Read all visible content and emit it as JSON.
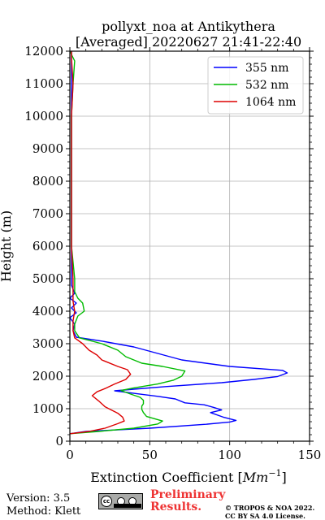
{
  "chart_data": {
    "type": "line",
    "title_line1": "pollyxt_noa at Antikythera",
    "title_line2": "[Averaged] 20220627 21:41-22:40",
    "xlabel": "Extinction Coefficient",
    "xlabel_unit": "Mm",
    "xlabel_unit_exp": "−1",
    "ylabel": "Height (m)",
    "xlim": [
      0,
      150
    ],
    "ylim": [
      0,
      12000
    ],
    "xticks": [
      0,
      50,
      100,
      150
    ],
    "yticks": [
      0,
      1000,
      2000,
      3000,
      4000,
      5000,
      6000,
      7000,
      8000,
      9000,
      10000,
      11000,
      12000
    ],
    "grid": true,
    "legend_position": "top-right",
    "series": [
      {
        "name": "355 nm",
        "color": "#0000ff",
        "points": [
          [
            0,
            230
          ],
          [
            10,
            300
          ],
          [
            50,
            400
          ],
          [
            85,
            520
          ],
          [
            100,
            590
          ],
          [
            104,
            640
          ],
          [
            96,
            740
          ],
          [
            88,
            880
          ],
          [
            95,
            960
          ],
          [
            90,
            1040
          ],
          [
            84,
            1120
          ],
          [
            72,
            1180
          ],
          [
            66,
            1300
          ],
          [
            55,
            1380
          ],
          [
            42,
            1460
          ],
          [
            28,
            1550
          ],
          [
            40,
            1600
          ],
          [
            60,
            1680
          ],
          [
            95,
            1800
          ],
          [
            115,
            1900
          ],
          [
            130,
            1990
          ],
          [
            136,
            2100
          ],
          [
            133,
            2180
          ],
          [
            100,
            2300
          ],
          [
            70,
            2500
          ],
          [
            55,
            2700
          ],
          [
            40,
            2900
          ],
          [
            20,
            3080
          ],
          [
            4,
            3200
          ],
          [
            2,
            3400
          ],
          [
            3,
            3600
          ],
          [
            0,
            3800
          ],
          [
            4,
            3950
          ],
          [
            1,
            4100
          ],
          [
            4,
            4250
          ],
          [
            0,
            4400
          ],
          [
            3,
            4550
          ],
          [
            1,
            4800
          ],
          [
            1,
            6000
          ],
          [
            1,
            8000
          ],
          [
            1,
            10000
          ],
          [
            1,
            12000
          ]
        ]
      },
      {
        "name": "532 nm",
        "color": "#00bb00",
        "points": [
          [
            0,
            230
          ],
          [
            18,
            300
          ],
          [
            40,
            400
          ],
          [
            55,
            530
          ],
          [
            58,
            620
          ],
          [
            48,
            760
          ],
          [
            46,
            880
          ],
          [
            45,
            980
          ],
          [
            45,
            1080
          ],
          [
            46,
            1150
          ],
          [
            46,
            1260
          ],
          [
            44,
            1350
          ],
          [
            38,
            1450
          ],
          [
            32,
            1560
          ],
          [
            40,
            1640
          ],
          [
            55,
            1760
          ],
          [
            65,
            1880
          ],
          [
            70,
            2000
          ],
          [
            72,
            2160
          ],
          [
            58,
            2300
          ],
          [
            45,
            2400
          ],
          [
            35,
            2600
          ],
          [
            30,
            2800
          ],
          [
            20,
            3000
          ],
          [
            6,
            3180
          ],
          [
            3,
            3400
          ],
          [
            3,
            3600
          ],
          [
            5,
            3850
          ],
          [
            9,
            4000
          ],
          [
            8,
            4250
          ],
          [
            5,
            4400
          ],
          [
            3,
            4600
          ],
          [
            3,
            5000
          ],
          [
            1,
            6000
          ],
          [
            1,
            7000
          ],
          [
            1,
            8000
          ],
          [
            1,
            9000
          ],
          [
            1,
            10000
          ],
          [
            2,
            11000
          ],
          [
            3,
            11700
          ],
          [
            0,
            12000
          ]
        ]
      },
      {
        "name": "1064 nm",
        "color": "#dd0000",
        "points": [
          [
            0,
            230
          ],
          [
            12,
            300
          ],
          [
            22,
            400
          ],
          [
            30,
            540
          ],
          [
            34,
            620
          ],
          [
            33,
            740
          ],
          [
            30,
            860
          ],
          [
            26,
            960
          ],
          [
            22,
            1060
          ],
          [
            18,
            1240
          ],
          [
            14,
            1400
          ],
          [
            17,
            1520
          ],
          [
            22,
            1620
          ],
          [
            28,
            1760
          ],
          [
            35,
            1900
          ],
          [
            38,
            2060
          ],
          [
            36,
            2200
          ],
          [
            30,
            2300
          ],
          [
            20,
            2500
          ],
          [
            17,
            2650
          ],
          [
            12,
            2800
          ],
          [
            8,
            3000
          ],
          [
            3,
            3180
          ],
          [
            2,
            3400
          ],
          [
            2,
            3700
          ],
          [
            3,
            4000
          ],
          [
            2,
            4300
          ],
          [
            2,
            5000
          ],
          [
            1,
            6000
          ],
          [
            1,
            7000
          ],
          [
            1,
            8000
          ],
          [
            1,
            9000
          ],
          [
            1,
            10000
          ],
          [
            2,
            11000
          ],
          [
            1,
            11800
          ],
          [
            1,
            12000
          ]
        ]
      }
    ]
  },
  "footer": {
    "version": "Version: 3.5",
    "method": "Method: Klett",
    "preliminary_line1": "Preliminary",
    "preliminary_line2": "Results.",
    "copyright_line1": "© TROPOS & NOA 2022.",
    "copyright_line2": "CC BY SA 4.0 License.",
    "cc_badge_text": "cc",
    "cc_badge_icon": "cc-by-sa-badge-icon"
  },
  "colors": {
    "preliminary": "#ee3333",
    "grid": "#b0b0b0"
  }
}
